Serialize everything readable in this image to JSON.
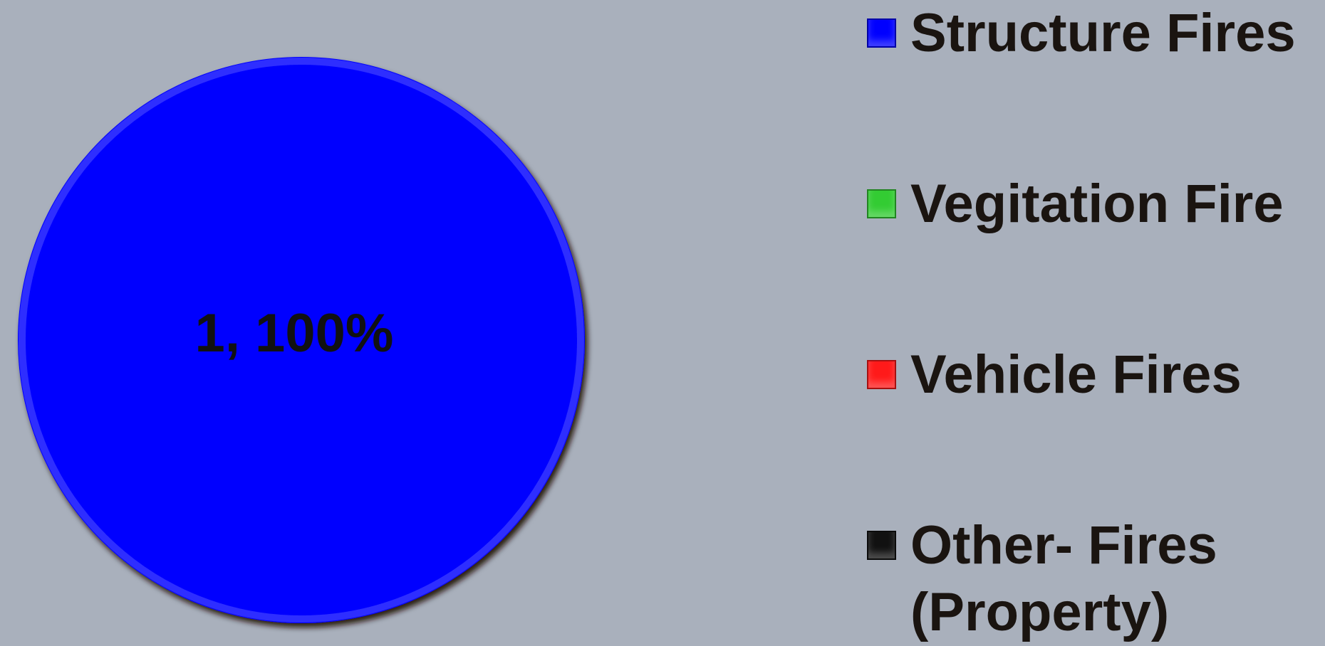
{
  "chart_data": {
    "type": "pie",
    "categories": [
      "Structure Fires",
      "Vegitation Fire",
      "Vehicle Fires",
      "Other- Fires (Property)"
    ],
    "values": [
      1,
      0,
      0,
      0
    ],
    "value_labels": [
      "1, 100%",
      null,
      null,
      null
    ],
    "colors": [
      "#0000ff",
      "#33cc33",
      "#ff1a1a",
      "#111111"
    ],
    "legend": "right"
  }
}
